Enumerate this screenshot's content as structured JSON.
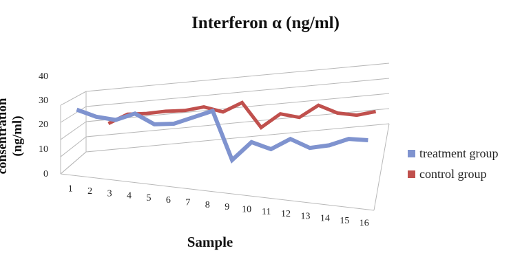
{
  "chart_data": {
    "type": "line",
    "title": "Interferon α (ng/ml)",
    "xlabel": "Sample",
    "ylabel": "consentration (ng/ml)",
    "categories": [
      "1",
      "2",
      "3",
      "4",
      "5",
      "6",
      "7",
      "8",
      "9",
      "10",
      "11",
      "12",
      "13",
      "14",
      "15",
      "16"
    ],
    "yticks": [
      "0",
      "10",
      "20",
      "30",
      "40"
    ],
    "ylim": [
      0,
      40
    ],
    "grid": true,
    "legend_position": "right",
    "series": [
      {
        "name": "treatment group",
        "color": "#7f93cf",
        "values": [
          31,
          28,
          27,
          31,
          26,
          27,
          31,
          35,
          10,
          20,
          17,
          23,
          19,
          21,
          25,
          25
        ]
      },
      {
        "name": "control group",
        "color": "#c0504d",
        "values": [
          null,
          23,
          29,
          29,
          30,
          30,
          32,
          28,
          34,
          16,
          25,
          22,
          30,
          24,
          22,
          24
        ]
      }
    ]
  }
}
